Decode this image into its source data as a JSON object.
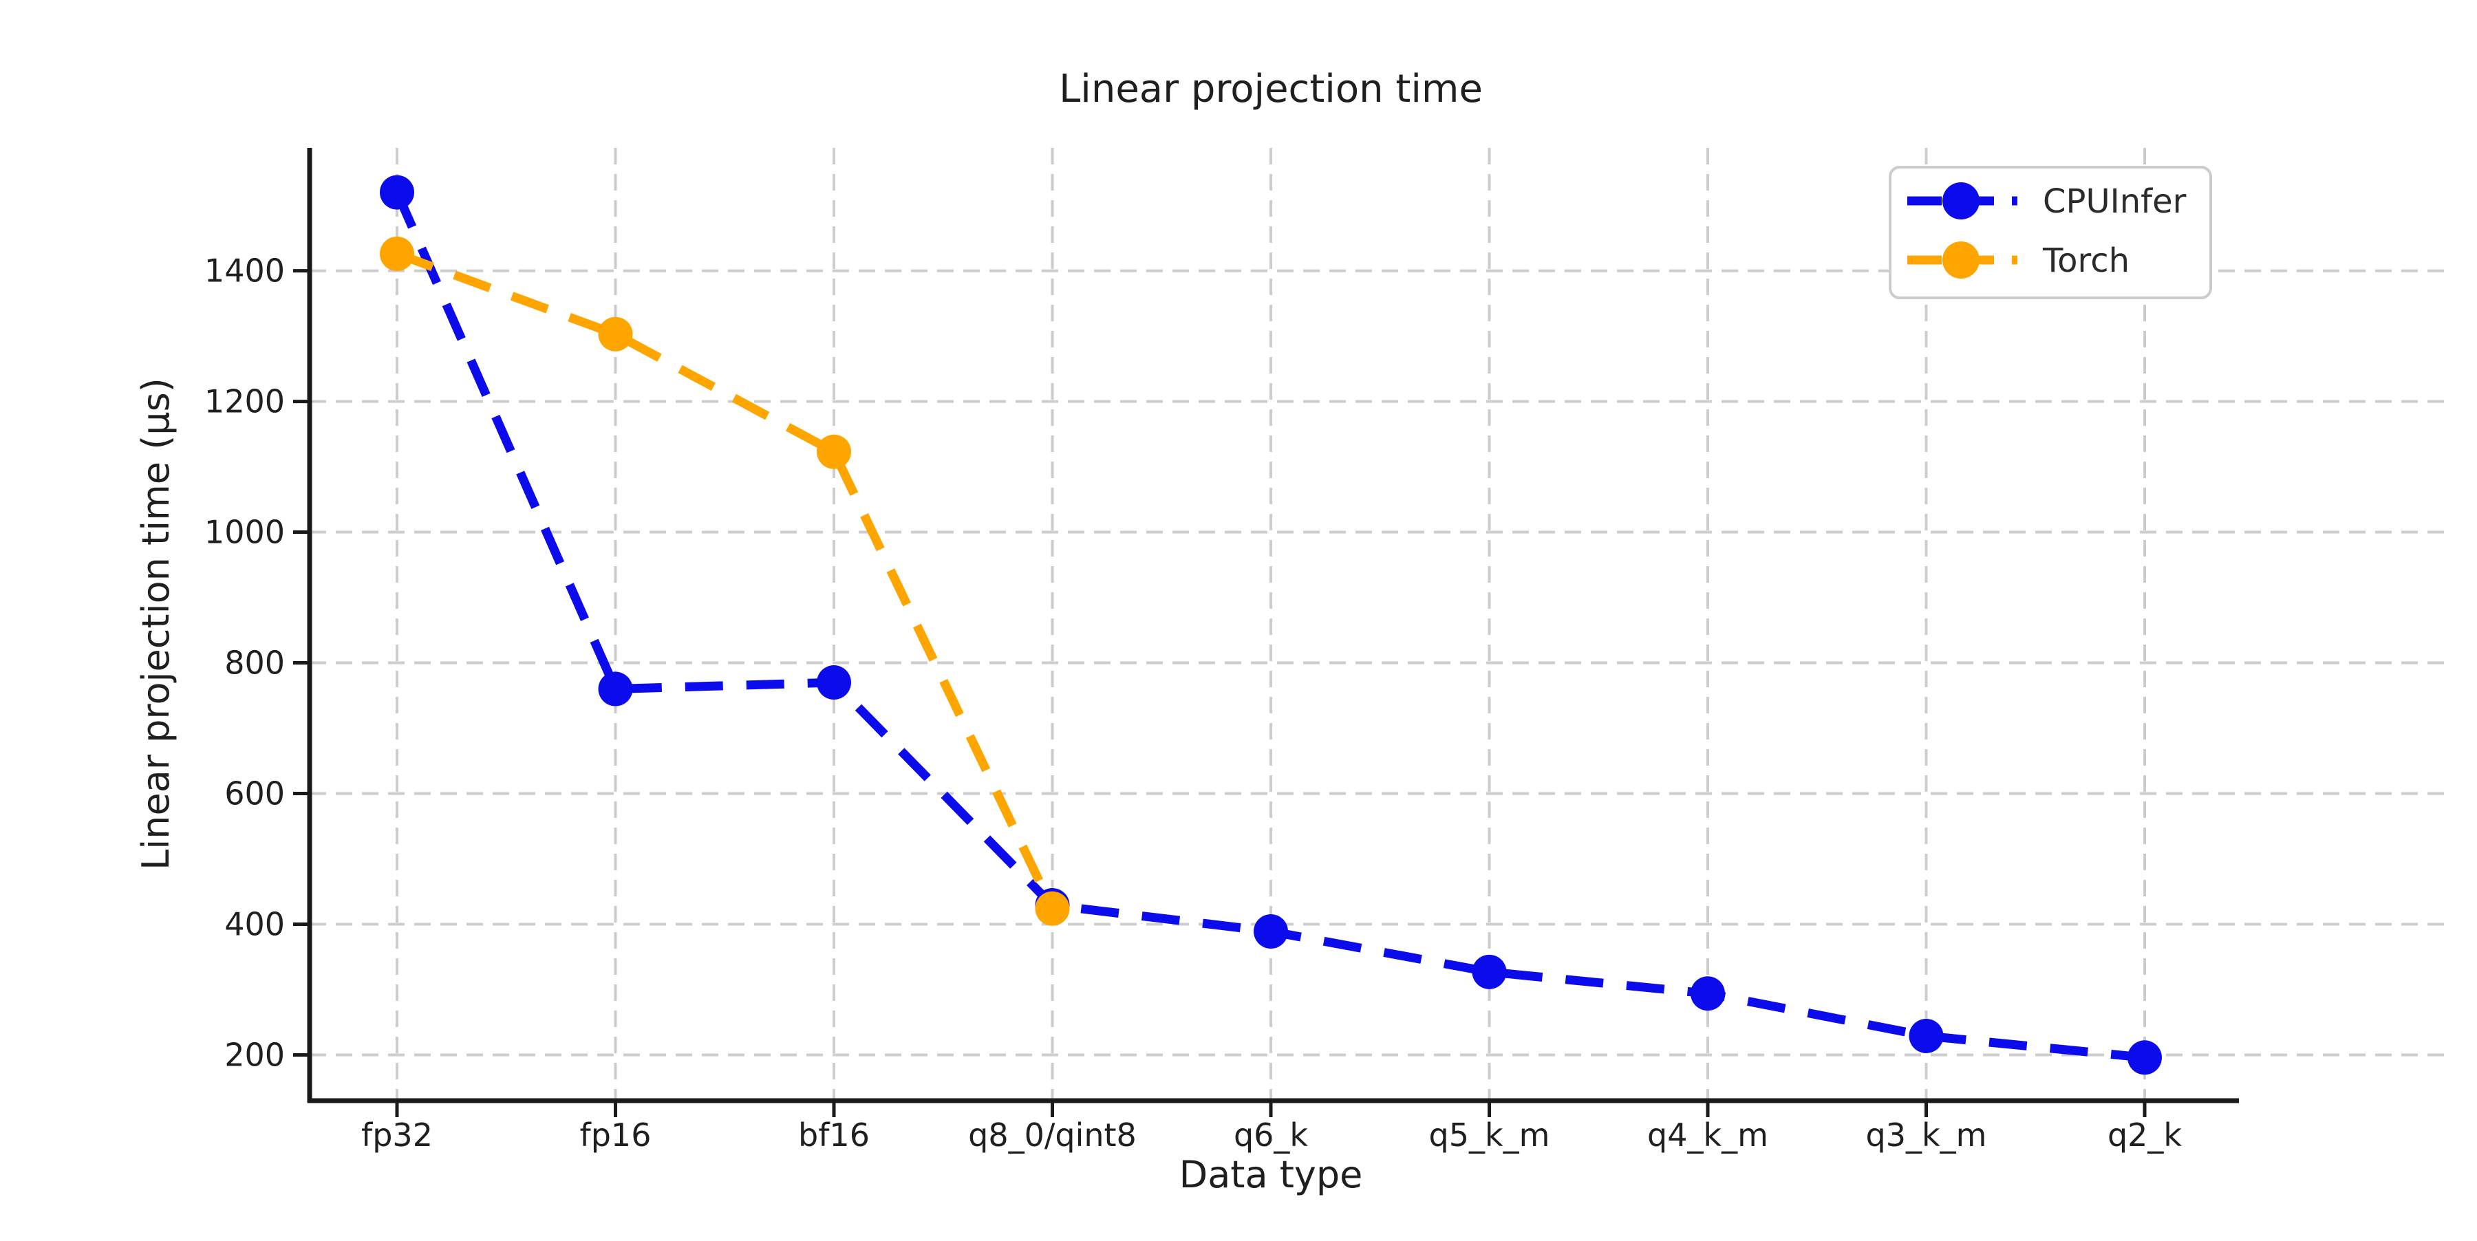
{
  "figure": {
    "background_color": "#ffffff",
    "title": "Linear projection time"
  },
  "chart_data": {
    "type": "line",
    "title": "Linear projection time",
    "xlabel": "Data type",
    "ylabel": "Linear projection time (μs)",
    "categories": [
      "fp32",
      "fp16",
      "bf16",
      "q8_0/qint8",
      "q6_k",
      "q5_k_m",
      "q4_k_m",
      "q3_k_m",
      "q2_k"
    ],
    "series": [
      {
        "name": "CPUInfer",
        "color": "#0b0bec",
        "line_style": "dashed",
        "marker": "circle",
        "values": [
          1520,
          760,
          770,
          429,
          389,
          327,
          294,
          229,
          196
        ]
      },
      {
        "name": "Torch",
        "color": "#ffa500",
        "line_style": "dashed",
        "marker": "circle",
        "values": [
          1426,
          1303,
          1123,
          424,
          null,
          null,
          null,
          null,
          null
        ]
      }
    ],
    "yticks": [
      200,
      400,
      600,
      800,
      1000,
      1200,
      1400
    ],
    "ylim": [
      130,
      1588
    ],
    "grid": "dashed-both-axes",
    "legend_position": "upper right"
  },
  "style": {
    "grid_color": "#cdcdcd",
    "spine_color": "#1a1a1a",
    "tick_color": "#1a1a1a",
    "text_color": "#1f1f1f",
    "legend_border_color": "#cccccc",
    "legend_background": "#ffffff"
  }
}
